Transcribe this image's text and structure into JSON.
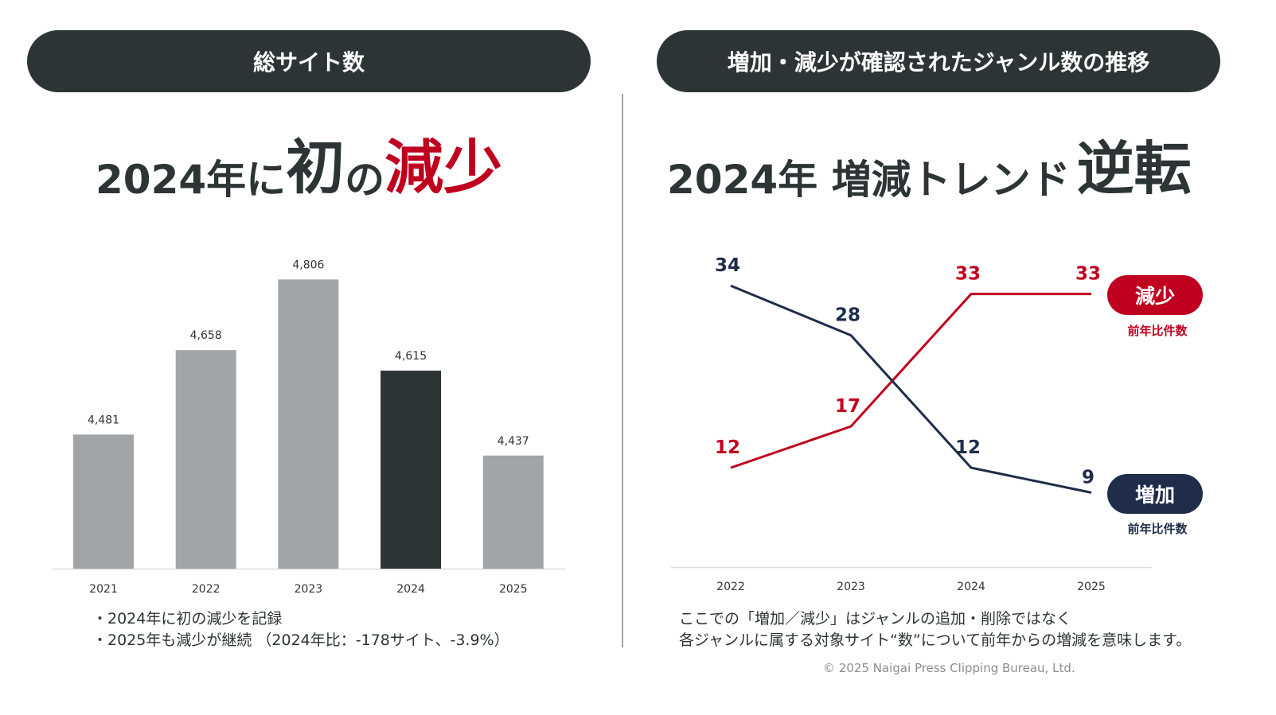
{
  "left": {
    "header": "総サイト数",
    "headline": {
      "part1": "2024年に",
      "part2": "初",
      "part3": "の",
      "part4": "減少"
    },
    "notes": [
      "・2024年に初の減少を記録",
      "・2025年も減少が継続 （2024年比：-178サイト、-3.9%）"
    ]
  },
  "right": {
    "header": "増加・減少が確認されたジャンル数の推移",
    "headline": {
      "part1": "2024年 増減トレンド",
      "part2": "逆転"
    },
    "notes": [
      "ここでの「増加／減少」はジャンルの追加・削除ではなく",
      "各ジャンルに属する対象サイト“数”について前年からの増減を意味します。"
    ],
    "tags": [
      {
        "label": "減少",
        "sub": "前年比件数"
      },
      {
        "label": "増加",
        "sub": "前年比件数"
      }
    ]
  },
  "copyright": "© 2025 Naigai Press Clipping Bureau, Ltd.",
  "colors": {
    "red": "#c0001f",
    "navy": "#1f2d4a",
    "dark": "#2d3436",
    "gray": "#a2a5a7"
  },
  "chart_data": [
    {
      "type": "bar",
      "title": "総サイト数",
      "categories": [
        "2021",
        "2022",
        "2023",
        "2024",
        "2025"
      ],
      "values": [
        4481,
        4658,
        4806,
        4615,
        4437
      ],
      "labels": [
        "4,481",
        "4,658",
        "4,806",
        "4,615",
        "4,437"
      ],
      "highlight": "2024",
      "ylim": [
        4200,
        4900
      ],
      "grid": false
    },
    {
      "type": "line",
      "title": "増加・減少が確認されたジャンル数の推移",
      "categories": [
        "2022",
        "2023",
        "2024",
        "2025"
      ],
      "series": [
        {
          "name": "減少",
          "values": [
            12,
            17,
            33,
            33
          ],
          "color": "#c0001f"
        },
        {
          "name": "増加",
          "values": [
            34,
            28,
            12,
            9
          ],
          "color": "#1f2d4a"
        }
      ],
      "ylim": [
        0,
        37
      ],
      "grid": false,
      "legend": "right"
    }
  ]
}
